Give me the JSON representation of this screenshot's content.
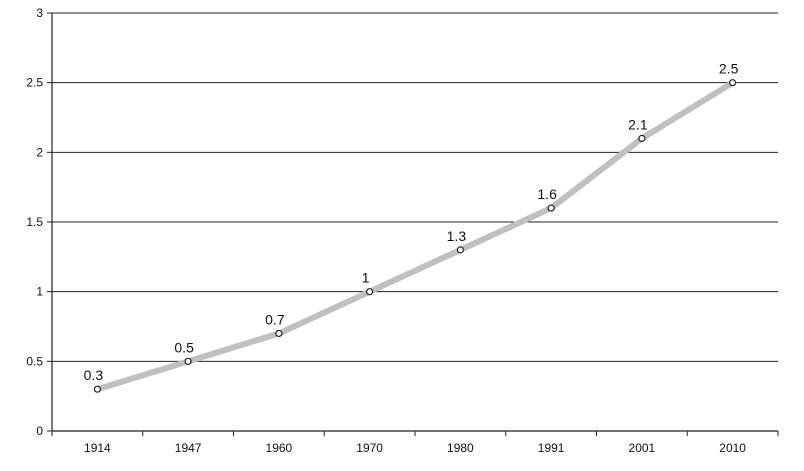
{
  "chart_data": {
    "type": "line",
    "categories": [
      "1914",
      "1947",
      "1960",
      "1970",
      "1980",
      "1991",
      "2001",
      "2010"
    ],
    "series": [
      {
        "values": [
          0.3,
          0.5,
          0.7,
          1,
          1.3,
          1.6,
          2.1,
          2.5
        ],
        "data_labels": [
          "0.3",
          "0.5",
          "0.7",
          "1",
          "1.3",
          "1.6",
          "2.1",
          "2.5"
        ],
        "color": "#c0c0c0"
      }
    ],
    "y_ticks": [
      "0",
      "0.5",
      "1",
      "1.5",
      "2",
      "2.5",
      "3"
    ],
    "ylim": [
      0,
      3
    ],
    "grid": true,
    "legend": false,
    "title": "",
    "xlabel": "",
    "ylabel": ""
  }
}
